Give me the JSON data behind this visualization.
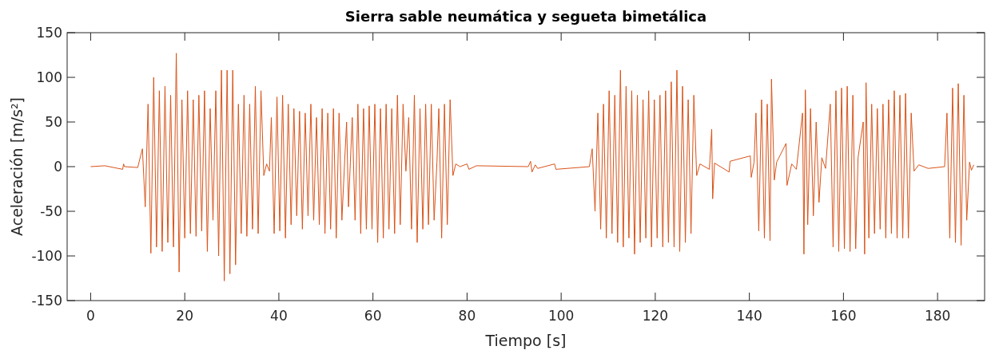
{
  "chart_data": {
    "type": "line",
    "title": "Sierra sable neumática y segueta bimetálica",
    "xlabel": "Tiempo [s]",
    "ylabel": "Aceleración [m/s²]",
    "xlim": [
      -5,
      190
    ],
    "xticks": [
      0,
      20,
      40,
      60,
      80,
      100,
      120,
      140,
      160,
      180
    ],
    "ylim": [
      -150,
      150
    ],
    "yticks": [
      -150,
      -100,
      -50,
      0,
      50,
      100,
      150
    ],
    "grid": false,
    "marker": "none",
    "line_style": "solid",
    "series": [
      {
        "color": "#d95319",
        "x": [
          0,
          3,
          6.8,
          7,
          7.2,
          10,
          11.0,
          11.6,
          12.2,
          12.8,
          13.4,
          14.0,
          14.6,
          15.2,
          15.8,
          16.4,
          17.0,
          17.6,
          18.2,
          18.8,
          19.4,
          20.0,
          20.6,
          21.2,
          21.8,
          22.4,
          23.0,
          23.6,
          24.2,
          24.8,
          25.4,
          26.0,
          26.6,
          27.2,
          27.8,
          28.4,
          29.0,
          29.6,
          30.2,
          30.8,
          31.4,
          32.0,
          32.6,
          33.2,
          33.8,
          34.4,
          35.0,
          35.6,
          36.2,
          36.8,
          37.4,
          38.0,
          38.4,
          39.0,
          39.6,
          40.2,
          40.8,
          41.4,
          42.0,
          42.6,
          43.2,
          43.8,
          44.4,
          45.0,
          45.6,
          46.2,
          46.8,
          47.4,
          48.0,
          48.6,
          49.2,
          49.8,
          50.4,
          51.0,
          51.6,
          52.2,
          52.8,
          53.4,
          54.0,
          54.4,
          54.8,
          55.2,
          55.6,
          56.2,
          56.8,
          57.4,
          58.0,
          58.6,
          59.2,
          59.8,
          60.4,
          61.0,
          61.6,
          62.2,
          62.8,
          63.4,
          64.0,
          64.6,
          65.2,
          65.8,
          66.4,
          67.0,
          67.6,
          68.2,
          68.8,
          69.4,
          70.0,
          70.6,
          71.2,
          71.8,
          72.4,
          73.0,
          73.6,
          74.0,
          74.6,
          75.2,
          75.8,
          76.4,
          77.0,
          77.6,
          78.5,
          80,
          80.4,
          82,
          93,
          93.5,
          93.8,
          94.5,
          95,
          98.6,
          98.9,
          106,
          106.6,
          107.2,
          107.8,
          108.4,
          109.0,
          109.6,
          110.2,
          110.8,
          111.4,
          112.0,
          112.6,
          113.2,
          113.8,
          114.4,
          115.0,
          115.6,
          116.2,
          116.8,
          117.4,
          118.0,
          118.6,
          119.2,
          119.8,
          120.4,
          121.0,
          121.6,
          122.2,
          122.8,
          123.4,
          124.0,
          124.6,
          125.2,
          125.8,
          126.4,
          127.0,
          127.6,
          128.2,
          128.8,
          129.5,
          131.5,
          132.0,
          132.2,
          132.6,
          135.7,
          135.9,
          140.2,
          140.4,
          141.0,
          141.4,
          142.0,
          142.6,
          143.2,
          143.8,
          144.4,
          144.7,
          145.3,
          145.8,
          147.8,
          148.0,
          149,
          150,
          151.3,
          151.6,
          151.9,
          152.4,
          153.0,
          153.6,
          154.2,
          154.8,
          155.4,
          156.2,
          157.2,
          157.8,
          158.4,
          159.0,
          159.6,
          160.2,
          160.8,
          161.4,
          162.0,
          162.6,
          163.1,
          164.2,
          164.5,
          164.8,
          165.4,
          166.0,
          166.6,
          167.2,
          167.8,
          168.4,
          169.0,
          169.6,
          170.2,
          170.8,
          171.4,
          172.0,
          172.6,
          173.2,
          173.8,
          174.4,
          175.0,
          176,
          178,
          181.5,
          182.0,
          182.6,
          183.2,
          183.8,
          184.4,
          185.0,
          185.6,
          186.2,
          186.8,
          187.2,
          187.7
        ],
        "values": [
          0,
          1,
          -3,
          3,
          0,
          -1,
          20,
          -45,
          70,
          -97,
          100,
          -90,
          85,
          -95,
          90,
          -85,
          80,
          -90,
          127,
          -118,
          75,
          -80,
          85,
          -75,
          75,
          -78,
          80,
          -72,
          85,
          -95,
          65,
          -60,
          85,
          -100,
          108,
          -128,
          108,
          -120,
          108,
          -110,
          70,
          -75,
          80,
          -78,
          70,
          -70,
          90,
          -75,
          85,
          -10,
          3,
          -5,
          55,
          -75,
          78,
          -72,
          80,
          -80,
          70,
          -65,
          65,
          -55,
          62,
          -70,
          60,
          -55,
          70,
          -60,
          55,
          -65,
          65,
          -75,
          60,
          -70,
          65,
          -80,
          60,
          -60,
          8,
          50,
          -45,
          5,
          55,
          -60,
          70,
          -75,
          65,
          -70,
          68,
          -70,
          70,
          -85,
          65,
          -80,
          70,
          -70,
          65,
          -75,
          80,
          -65,
          70,
          -5,
          55,
          -70,
          80,
          -85,
          65,
          -70,
          70,
          -65,
          70,
          -60,
          5,
          65,
          -80,
          70,
          -65,
          75,
          -10,
          3,
          0,
          3,
          -3,
          1,
          0,
          6,
          -6,
          2,
          -2,
          3,
          -3,
          0,
          20,
          -50,
          60,
          -70,
          70,
          -80,
          85,
          -75,
          80,
          -85,
          108,
          -90,
          90,
          -80,
          85,
          -98,
          80,
          -85,
          75,
          -80,
          85,
          -90,
          75,
          -80,
          80,
          -90,
          85,
          -85,
          95,
          -90,
          108,
          -95,
          90,
          -85,
          75,
          -75,
          80,
          -10,
          3,
          -3,
          42,
          -36,
          4,
          -6,
          6,
          12,
          -12,
          5,
          60,
          -72,
          75,
          -80,
          70,
          -83,
          98,
          -15,
          5,
          26,
          -21,
          3,
          -3,
          60,
          -98,
          86,
          -65,
          65,
          -55,
          50,
          -40,
          10,
          -2,
          70,
          -90,
          85,
          -95,
          88,
          -92,
          90,
          -95,
          80,
          -92,
          10,
          50,
          -98,
          94,
          -80,
          70,
          -75,
          65,
          -70,
          70,
          -80,
          75,
          -75,
          85,
          -80,
          80,
          -80,
          82,
          -80,
          60,
          -5,
          2,
          -2,
          0,
          60,
          -80,
          88,
          -85,
          93,
          -88,
          80,
          -60,
          5,
          -4,
          2
        ]
      }
    ]
  }
}
